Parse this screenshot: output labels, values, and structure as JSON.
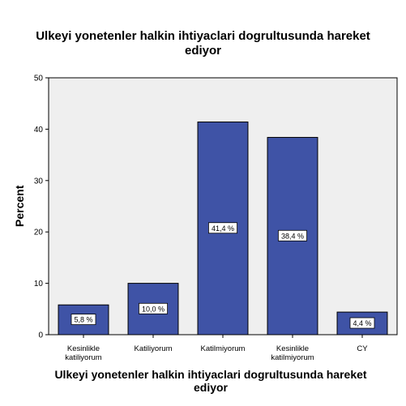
{
  "chart_data": {
    "type": "bar",
    "title": [
      "Ulkeyi yonetenler halkin ihtiyaclari dogrultusunda hareket",
      "ediyor"
    ],
    "xlabel": [
      "Ulkeyi yonetenler halkin ihtiyaclari dogrultusunda hareket",
      "ediyor"
    ],
    "ylabel": "Percent",
    "ylim": [
      0,
      50
    ],
    "yticks": [
      0,
      10,
      20,
      30,
      40,
      50
    ],
    "categories": [
      [
        "Kesinlikle",
        "katiliyorum"
      ],
      [
        "Katiliyorum"
      ],
      [
        "Katilmiyorum"
      ],
      [
        "Kesinlikle",
        "katilmiyorum"
      ],
      [
        "CY"
      ]
    ],
    "values": [
      5.8,
      10.0,
      41.4,
      38.4,
      4.4
    ],
    "data_labels": [
      "5,8 %",
      "10,0 %",
      "41,4 %",
      "38,4 %",
      "4,4 %"
    ],
    "bar_color": "#3f53a6",
    "plot_background": "#efefef",
    "grid": false
  }
}
